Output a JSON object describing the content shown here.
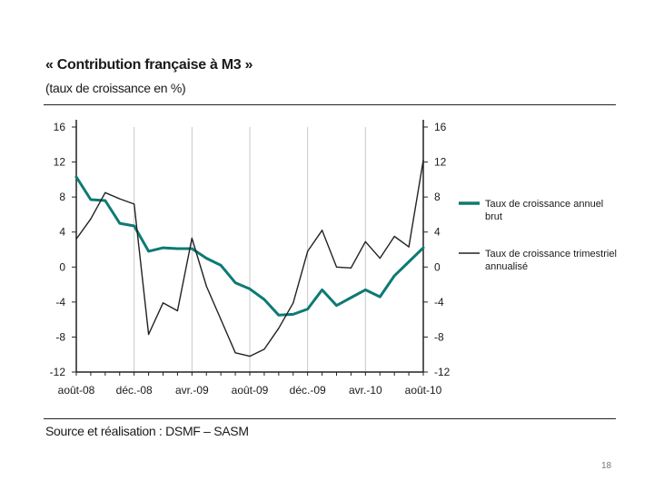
{
  "title": "« Contribution française à M3 »",
  "subtitle": "(taux de croissance en %)",
  "source": "Source et réalisation : DSMF – SASM",
  "page_number": "18",
  "colors": {
    "annual": "#0e7a73",
    "quarterly": "#222222",
    "grid": "#c8c8c8",
    "axis": "#222222"
  },
  "chart_data": {
    "type": "line",
    "title": "« Contribution française à M3 »",
    "subtitle": "(taux de croissance en %)",
    "xlabel": "",
    "ylabel": "",
    "ylim": [
      -12,
      16
    ],
    "yticks": [
      16,
      12,
      8,
      4,
      0,
      -4,
      -8,
      -12
    ],
    "yticks_right": [
      16,
      12,
      8,
      4,
      0,
      -4,
      -8,
      -12
    ],
    "x_ticklabels": [
      "août-08",
      "déc.-08",
      "avr.-09",
      "août-09",
      "déc.-09",
      "avr.-10",
      "août-10"
    ],
    "grid": "vertical",
    "legend_position": "right",
    "series": [
      {
        "name": "Taux de croissance annuel brut",
        "color": "#0e7a73",
        "values": [
          10.3,
          7.7,
          7.6,
          5.0,
          4.7,
          1.8,
          2.2,
          2.1,
          2.1,
          1.0,
          0.2,
          -1.8,
          -2.5,
          -3.7,
          -5.5,
          -5.4,
          -4.8,
          -2.6,
          -4.4,
          -3.5,
          -2.6,
          -3.4,
          -1.0,
          0.6,
          2.2
        ]
      },
      {
        "name": "Taux de croissance trimestriel annualisé",
        "color": "#222222",
        "values": [
          3.2,
          5.5,
          8.5,
          7.8,
          7.2,
          -7.7,
          -4.1,
          -5.0,
          3.3,
          -2.2,
          -6.0,
          -9.8,
          -10.2,
          -9.4,
          -7.0,
          -4.1,
          1.8,
          4.2,
          0.0,
          -0.1,
          2.9,
          1.0,
          3.5,
          2.3,
          12.2
        ]
      }
    ]
  }
}
